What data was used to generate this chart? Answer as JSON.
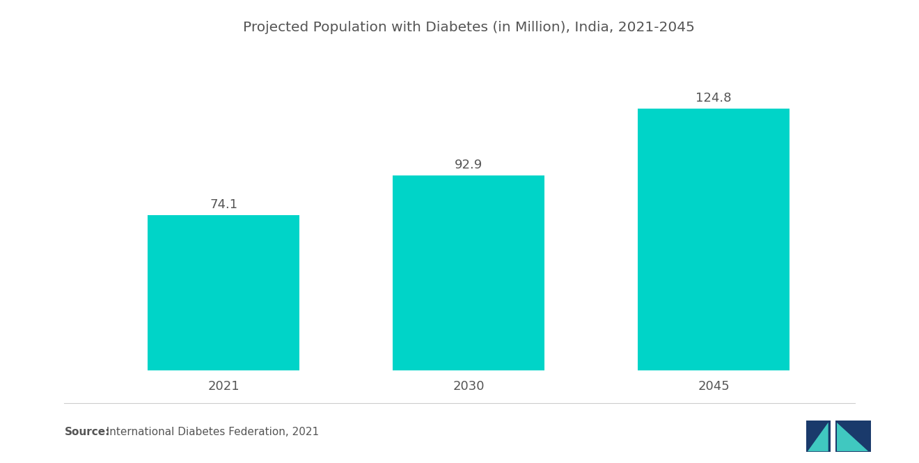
{
  "title": "Projected Population with Diabetes (in Million), India, 2021-2045",
  "categories": [
    "2021",
    "2030",
    "2045"
  ],
  "values": [
    74.1,
    92.9,
    124.8
  ],
  "bar_color": "#00D4C8",
  "value_labels": [
    "74.1",
    "92.9",
    "124.8"
  ],
  "source_bold": "Source:",
  "source_rest": "  International Diabetes Federation, 2021",
  "background_color": "#ffffff",
  "title_fontsize": 14.5,
  "label_fontsize": 13,
  "tick_fontsize": 13,
  "source_fontsize": 11,
  "ylim": [
    0,
    150
  ],
  "bar_width": 0.62
}
